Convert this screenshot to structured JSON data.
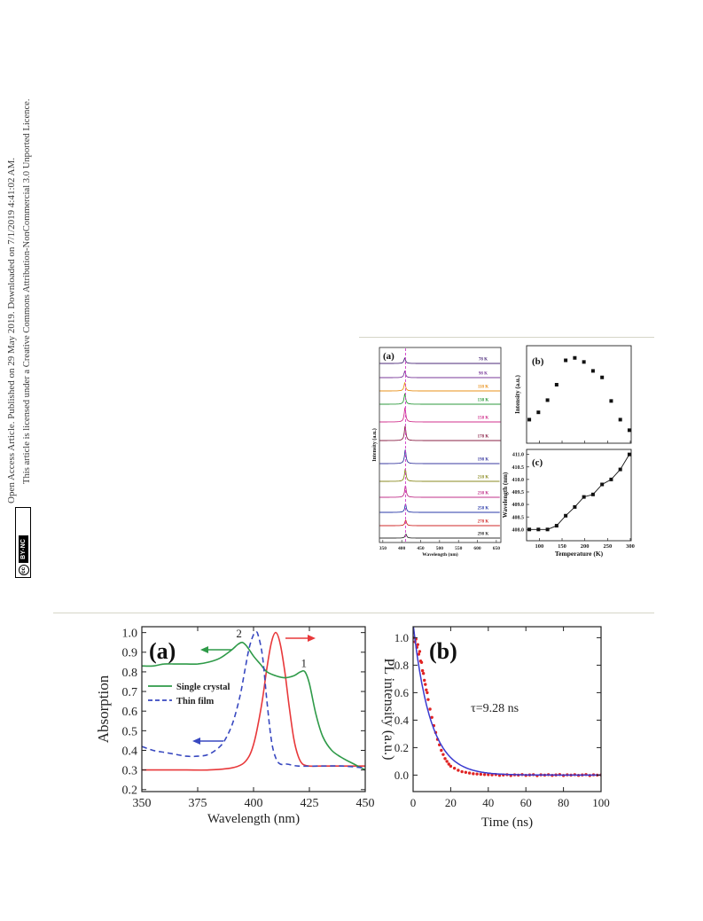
{
  "license": {
    "line1": "Open Access Article. Published on 29 May 2019. Downloaded on 7/1/2019 4:41:02 AM.",
    "line2": "This article is licensed under a Creative Commons Attribution-NonCommercial 3.0 Unported Licence.",
    "badge_cc": "cc",
    "badge_text": "BY-NC"
  },
  "chart_data": [
    {
      "type": "line",
      "panel": "(a)",
      "xlabel": "Wavelength (nm)",
      "ylabel": "Intensity (a.u.)",
      "xlim": [
        341,
        662
      ],
      "xticks": [
        "350",
        "400",
        "450",
        "500",
        "550",
        "600",
        "650"
      ],
      "marker_line_nm": 410,
      "series": [
        {
          "name": "78 K",
          "color": "#4b2a7a",
          "peak_nm": 408.0,
          "relative_intensity": 0.24
        },
        {
          "name": "98 K",
          "color": "#7a3a9a",
          "peak_nm": 408.0,
          "relative_intensity": 0.33
        },
        {
          "name": "118 K",
          "color": "#e8901a",
          "peak_nm": 408.0,
          "relative_intensity": 0.48
        },
        {
          "name": "138 K",
          "color": "#2e9a3e",
          "peak_nm": 408.15,
          "relative_intensity": 0.67
        },
        {
          "name": "158 K",
          "color": "#d0308c",
          "peak_nm": 408.55,
          "relative_intensity": 0.97
        },
        {
          "name": "178 K",
          "color": "#8a2046",
          "peak_nm": 408.9,
          "relative_intensity": 1.0
        },
        {
          "name": "198 K",
          "color": "#3a3aa0",
          "peak_nm": 409.3,
          "relative_intensity": 0.95
        },
        {
          "name": "218 K",
          "color": "#8a8a20",
          "peak_nm": 409.4,
          "relative_intensity": 0.84
        },
        {
          "name": "238 K",
          "color": "#c0308a",
          "peak_nm": 409.8,
          "relative_intensity": 0.76
        },
        {
          "name": "258 K",
          "color": "#2a3aa8",
          "peak_nm": 410.0,
          "relative_intensity": 0.47
        },
        {
          "name": "278 K",
          "color": "#d02a2a",
          "peak_nm": 410.4,
          "relative_intensity": 0.24
        },
        {
          "name": "298 K",
          "color": "#333333",
          "peak_nm": 411.0,
          "relative_intensity": 0.11
        }
      ]
    },
    {
      "type": "scatter",
      "panel": "(b)",
      "ylabel": "Intensity (a.u.)",
      "xlim": [
        72,
        302
      ],
      "ylim": [
        -0.05,
        1.15
      ],
      "x": [
        78,
        98,
        118,
        138,
        158,
        178,
        198,
        218,
        238,
        258,
        278,
        298
      ],
      "y": [
        0.24,
        0.33,
        0.48,
        0.67,
        0.97,
        1.0,
        0.95,
        0.84,
        0.76,
        0.47,
        0.24,
        0.11
      ],
      "color": "#111111"
    },
    {
      "type": "line",
      "panel": "(c)",
      "xlabel": "Temperature (K)",
      "ylabel": "Wavelength (nm)",
      "xlim": [
        72,
        302
      ],
      "ylim": [
        407.55,
        411.2
      ],
      "xticks": [
        "100",
        "150",
        "200",
        "250",
        "300"
      ],
      "yticks": [
        "408.0",
        "408.5",
        "409.0",
        "409.5",
        "410.0",
        "410.5",
        "411.0"
      ],
      "x": [
        78,
        98,
        118,
        138,
        158,
        178,
        198,
        218,
        238,
        258,
        278,
        298
      ],
      "y": [
        408.0,
        408.0,
        408.0,
        408.15,
        408.55,
        408.9,
        409.3,
        409.4,
        409.8,
        410.0,
        410.4,
        411.0
      ],
      "color": "#111111"
    },
    {
      "type": "line",
      "panel": "(a)",
      "xlabel": "Wavelength (nm)",
      "ylabel": "Absorption",
      "xlim": [
        350,
        450
      ],
      "ylim": [
        0.19,
        1.03
      ],
      "xticks": [
        "350",
        "375",
        "400",
        "425",
        "450"
      ],
      "yticks": [
        "0.2",
        "0.3",
        "0.4",
        "0.5",
        "0.6",
        "0.7",
        "0.8",
        "0.9",
        "1.0"
      ],
      "legend": "center-left",
      "series": [
        {
          "color": "#e8383a",
          "x": [
            350,
            360,
            370,
            380,
            390,
            395,
            398,
            400,
            402,
            404,
            406,
            408,
            410,
            412,
            414,
            416,
            418,
            420,
            422,
            425,
            430,
            440,
            450
          ],
          "y": [
            0.3,
            0.3,
            0.3,
            0.3,
            0.31,
            0.33,
            0.37,
            0.43,
            0.53,
            0.66,
            0.82,
            0.95,
            1.0,
            0.94,
            0.8,
            0.62,
            0.46,
            0.37,
            0.33,
            0.32,
            0.32,
            0.32,
            0.32
          ]
        },
        {
          "name": "Single crystal",
          "color": "#2e9a48",
          "x": [
            350,
            355,
            360,
            365,
            370,
            375,
            380,
            385,
            390,
            393,
            395,
            397,
            400,
            403,
            406,
            410,
            414,
            418,
            421,
            423,
            425,
            428,
            431,
            435,
            440,
            445,
            450
          ],
          "y": [
            0.83,
            0.83,
            0.84,
            0.84,
            0.84,
            0.84,
            0.85,
            0.87,
            0.91,
            0.94,
            0.95,
            0.93,
            0.88,
            0.84,
            0.8,
            0.78,
            0.77,
            0.78,
            0.8,
            0.8,
            0.74,
            0.58,
            0.47,
            0.4,
            0.36,
            0.33,
            0.3
          ]
        },
        {
          "name": "Thin film",
          "color": "#3848c0",
          "dash": true,
          "x": [
            350,
            355,
            360,
            365,
            370,
            375,
            380,
            385,
            388,
            391,
            394,
            396,
            398,
            400,
            401,
            402,
            404,
            406,
            408,
            410,
            412,
            415,
            420,
            430,
            440,
            450
          ],
          "y": [
            0.42,
            0.4,
            0.39,
            0.38,
            0.37,
            0.37,
            0.38,
            0.42,
            0.47,
            0.55,
            0.68,
            0.8,
            0.92,
            0.99,
            1.0,
            0.99,
            0.88,
            0.65,
            0.45,
            0.36,
            0.33,
            0.33,
            0.32,
            0.32,
            0.32,
            0.31
          ]
        }
      ],
      "annotations": [
        {
          "text": "2",
          "x": 393.5,
          "y": 0.975
        },
        {
          "text": "1",
          "x": 422.5,
          "y": 0.825
        }
      ]
    },
    {
      "type": "scatter",
      "panel": "(b)",
      "xlabel": "Time (ns)",
      "ylabel": "PL intensity (a.u.)",
      "xlim": [
        0,
        100
      ],
      "ylim": [
        -0.12,
        1.08
      ],
      "xticks": [
        "0",
        "20",
        "40",
        "60",
        "80",
        "100"
      ],
      "yticks": [
        "0.0",
        "0.2",
        "0.4",
        "0.6",
        "0.8",
        "1.0"
      ],
      "annotations": [
        {
          "text": "τ=9.28 ns",
          "x": 30.7,
          "y": 0.46
        }
      ],
      "data": {
        "color": "#e02424",
        "points": [
          [
            0,
            1.04
          ],
          [
            0.5,
            1.0
          ],
          [
            1,
            0.97
          ],
          [
            1.5,
            0.99
          ],
          [
            2,
            0.93
          ],
          [
            2.5,
            0.95
          ],
          [
            3,
            0.88
          ],
          [
            3.5,
            0.9
          ],
          [
            4,
            0.83
          ],
          [
            4.5,
            0.82
          ],
          [
            5,
            0.76
          ],
          [
            5.5,
            0.74
          ],
          [
            6,
            0.69
          ],
          [
            6.5,
            0.66
          ],
          [
            7,
            0.62
          ],
          [
            7.5,
            0.6
          ],
          [
            8,
            0.55
          ],
          [
            9,
            0.48
          ],
          [
            10,
            0.42
          ],
          [
            11,
            0.36
          ],
          [
            12,
            0.31
          ],
          [
            13,
            0.26
          ],
          [
            14,
            0.22
          ],
          [
            15,
            0.18
          ],
          [
            16,
            0.15
          ],
          [
            17,
            0.12
          ],
          [
            18,
            0.1
          ],
          [
            19,
            0.08
          ],
          [
            20,
            0.065
          ],
          [
            22,
            0.05
          ],
          [
            24,
            0.035
          ],
          [
            26,
            0.025
          ],
          [
            28,
            0.02
          ],
          [
            30,
            0.015
          ],
          [
            32,
            0.01
          ],
          [
            34,
            0.008
          ],
          [
            36,
            0.006
          ],
          [
            38,
            0.004
          ],
          [
            40,
            0.003
          ],
          [
            42,
            0.002
          ],
          [
            44,
            0.004
          ],
          [
            46,
            -0.002
          ],
          [
            48,
            0.001
          ],
          [
            50,
            0.003
          ],
          [
            52,
            -0.003
          ],
          [
            54,
            0.002
          ],
          [
            56,
            0.0
          ],
          [
            58,
            0.004
          ],
          [
            60,
            -0.002
          ],
          [
            62,
            0.001
          ],
          [
            64,
            0.003
          ],
          [
            66,
            -0.004
          ],
          [
            68,
            0.002
          ],
          [
            70,
            0.0
          ],
          [
            72,
            0.003
          ],
          [
            74,
            -0.002
          ],
          [
            76,
            0.001
          ],
          [
            78,
            0.004
          ],
          [
            80,
            -0.003
          ],
          [
            82,
            0.002
          ],
          [
            84,
            0.0
          ],
          [
            86,
            0.003
          ],
          [
            88,
            -0.002
          ],
          [
            90,
            0.001
          ],
          [
            92,
            0.004
          ],
          [
            94,
            -0.003
          ],
          [
            96,
            0.002
          ],
          [
            98,
            0.0
          ],
          [
            100,
            0.001
          ]
        ]
      },
      "fit": {
        "color": "#3a3ad0",
        "amplitude": 1.1,
        "tau_ns": 9.28
      }
    }
  ]
}
